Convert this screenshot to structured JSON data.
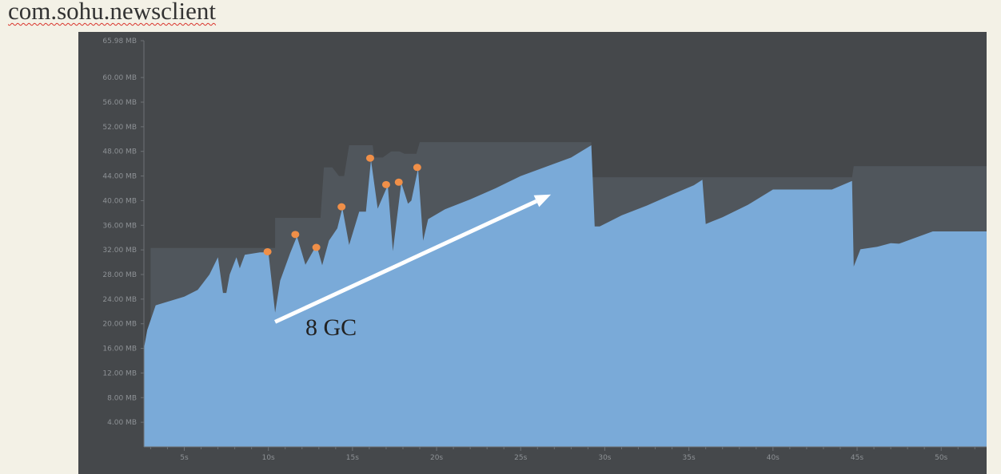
{
  "header": {
    "app_title": "com.sohu.newsclient"
  },
  "colors": {
    "background": "#45484b",
    "allocated": "#50565c",
    "used": "#7aaad8",
    "gc_marker": "#f08f48",
    "arrow": "#ffffff",
    "tick_text": "#8d9195"
  },
  "chart_data": {
    "type": "area",
    "title": "",
    "xlabel": "",
    "ylabel": "",
    "xlim": [
      2.6,
      52.7
    ],
    "ylim": [
      0,
      65.98
    ],
    "x_ticks": [
      5,
      10,
      15,
      20,
      25,
      30,
      35,
      40,
      45,
      50
    ],
    "x_tick_labels": [
      "5s",
      "10s",
      "15s",
      "20s",
      "25s",
      "30s",
      "35s",
      "40s",
      "45s",
      "50s"
    ],
    "y_ticks": [
      4,
      8,
      12,
      16,
      20,
      24,
      28,
      32,
      36,
      40,
      44,
      48,
      52,
      56,
      60,
      65.98
    ],
    "y_tick_labels": [
      "4.00 MB",
      "8.00 MB",
      "12.00 MB",
      "16.00 MB",
      "20.00 MB",
      "24.00 MB",
      "28.00 MB",
      "32.00 MB",
      "36.00 MB",
      "40.00 MB",
      "44.00 MB",
      "48.00 MB",
      "52.00 MB",
      "56.00 MB",
      "60.00 MB",
      "65.98 MB"
    ],
    "series": [
      {
        "key": "allocated",
        "points": [
          [
            2.6,
            0
          ],
          [
            2.6,
            16
          ],
          [
            2.8,
            19
          ],
          [
            3.0,
            20
          ],
          [
            3.0,
            32.3
          ],
          [
            10.4,
            32.3
          ],
          [
            10.4,
            37.2
          ],
          [
            13.1,
            37.2
          ],
          [
            13.3,
            45.4
          ],
          [
            13.8,
            45.4
          ],
          [
            14.2,
            44
          ],
          [
            14.5,
            44
          ],
          [
            14.8,
            49
          ],
          [
            16.2,
            49
          ],
          [
            16.3,
            47
          ],
          [
            16.8,
            47
          ],
          [
            17.3,
            48
          ],
          [
            17.8,
            48
          ],
          [
            18.1,
            47.6
          ],
          [
            18.8,
            47.6
          ],
          [
            19.0,
            49.5
          ],
          [
            29.2,
            49.5
          ],
          [
            29.2,
            43.8
          ],
          [
            44.7,
            43.8
          ],
          [
            44.8,
            45.6
          ],
          [
            52.7,
            45.6
          ],
          [
            52.7,
            0
          ]
        ]
      },
      {
        "key": "used",
        "points": [
          [
            2.6,
            0
          ],
          [
            2.6,
            16
          ],
          [
            2.8,
            19
          ],
          [
            3.3,
            23
          ],
          [
            5.0,
            24.4
          ],
          [
            5.8,
            25.5
          ],
          [
            6.5,
            28
          ],
          [
            7.0,
            30.8
          ],
          [
            7.3,
            25
          ],
          [
            7.5,
            25
          ],
          [
            7.7,
            28
          ],
          [
            8.1,
            30.8
          ],
          [
            8.3,
            29
          ],
          [
            8.6,
            31.2
          ],
          [
            9.5,
            31.6
          ],
          [
            10.0,
            31.6
          ],
          [
            10.4,
            21.8
          ],
          [
            10.7,
            27
          ],
          [
            11.3,
            31.5
          ],
          [
            11.7,
            34.2
          ],
          [
            12.2,
            29.6
          ],
          [
            12.7,
            32
          ],
          [
            12.9,
            32.4
          ],
          [
            13.2,
            29.5
          ],
          [
            13.6,
            33.5
          ],
          [
            14.1,
            35.5
          ],
          [
            14.4,
            38.8
          ],
          [
            14.8,
            32.8
          ],
          [
            15.4,
            38.2
          ],
          [
            15.8,
            38.2
          ],
          [
            16.1,
            46.6
          ],
          [
            16.5,
            38.7
          ],
          [
            17.1,
            42.5
          ],
          [
            17.4,
            31.8
          ],
          [
            17.9,
            42.9
          ],
          [
            18.3,
            39.5
          ],
          [
            18.5,
            40
          ],
          [
            18.9,
            45.2
          ],
          [
            19.2,
            33.5
          ],
          [
            19.5,
            37
          ],
          [
            20.5,
            38.6
          ],
          [
            22.0,
            40.2
          ],
          [
            23.5,
            42
          ],
          [
            25.0,
            44
          ],
          [
            26.5,
            45.5
          ],
          [
            28.0,
            47
          ],
          [
            29.2,
            49
          ],
          [
            29.4,
            35.8
          ],
          [
            29.7,
            35.8
          ],
          [
            31.0,
            37.6
          ],
          [
            32.5,
            39.2
          ],
          [
            34.0,
            41
          ],
          [
            35.3,
            42.5
          ],
          [
            35.8,
            43.4
          ],
          [
            36.0,
            36.2
          ],
          [
            37.0,
            37.3
          ],
          [
            38.5,
            39.3
          ],
          [
            40.0,
            41.8
          ],
          [
            43.5,
            41.8
          ],
          [
            44.7,
            43.2
          ],
          [
            44.8,
            29.3
          ],
          [
            45.2,
            32.1
          ],
          [
            46.2,
            32.5
          ],
          [
            47.0,
            33.1
          ],
          [
            47.5,
            33
          ],
          [
            49.5,
            35
          ],
          [
            52.7,
            35
          ],
          [
            52.7,
            0
          ]
        ]
      }
    ],
    "gc_events": [
      [
        9.95,
        31.7
      ],
      [
        11.6,
        34.5
      ],
      [
        12.85,
        32.4
      ],
      [
        14.35,
        39.0
      ],
      [
        16.05,
        46.9
      ],
      [
        17.0,
        42.6
      ],
      [
        17.75,
        43.0
      ],
      [
        18.85,
        45.4
      ]
    ],
    "annotations": [
      {
        "type": "arrow",
        "from": [
          10.4,
          20.3
        ],
        "to": [
          26.8,
          41.0
        ]
      },
      {
        "type": "text",
        "label": "8 GC"
      }
    ]
  }
}
